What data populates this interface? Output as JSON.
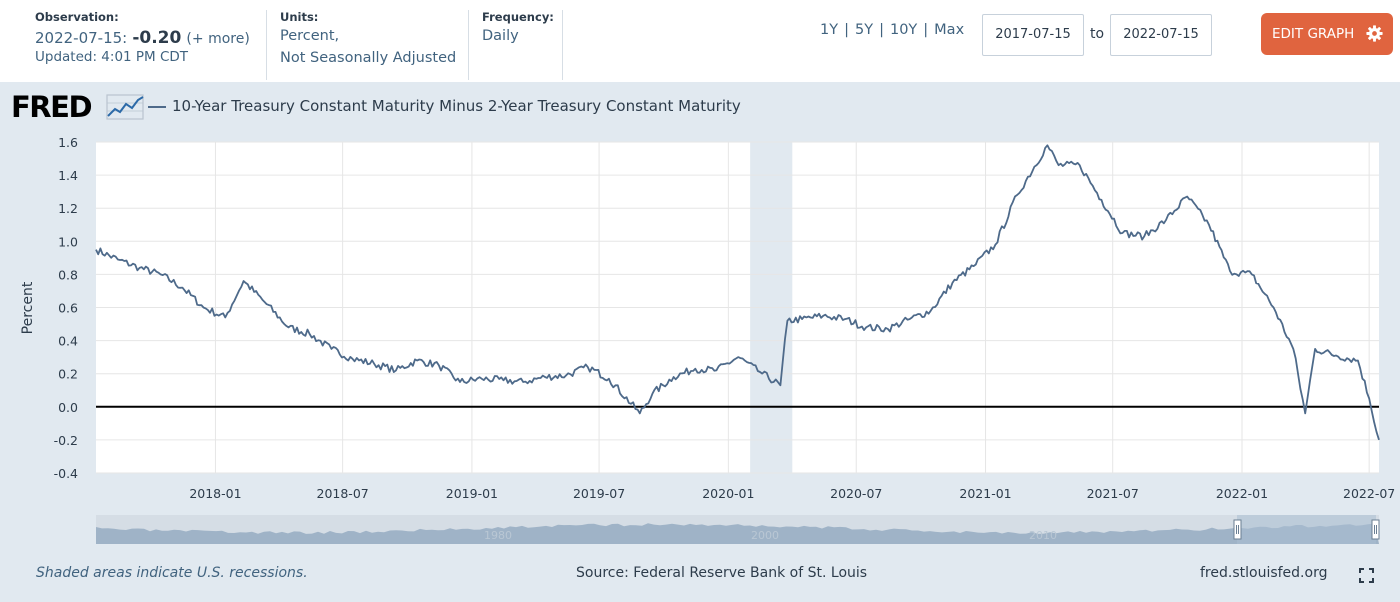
{
  "header": {
    "observation": {
      "label": "Observation:",
      "date": "2022-07-15:",
      "value": "-0.20",
      "more": "(+ more)",
      "updated": "Updated: 4:01 PM CDT"
    },
    "units": {
      "label": "Units:",
      "line1": "Percent,",
      "line2": "Not Seasonally Adjusted"
    },
    "frequency": {
      "label": "Frequency:",
      "value": "Daily"
    },
    "ranges": [
      "1Y",
      "5Y",
      "10Y",
      "Max"
    ],
    "range_separator": "|",
    "start_date": "2017-07-15",
    "to_label": "to",
    "end_date": "2022-07-15",
    "edit_button": "EDIT GRAPH"
  },
  "logo": {
    "text": "FRED",
    "icon": "fred-chart-icon"
  },
  "series_title": "10-Year Treasury Constant Maturity Minus 2-Year Treasury Constant Maturity",
  "chart_data": {
    "type": "line",
    "title": "10-Year Treasury Constant Maturity Minus 2-Year Treasury Constant Maturity",
    "ylabel": "Percent",
    "xlabel": "",
    "ylim": [
      -0.4,
      1.6
    ],
    "y_ticks": [
      "1.6",
      "1.4",
      "1.2",
      "1.0",
      "0.8",
      "0.6",
      "0.4",
      "0.2",
      "0.0",
      "-0.2",
      "-0.4"
    ],
    "xlim": [
      "2017-07-15",
      "2022-07-15"
    ],
    "x_ticks": [
      "2018-01",
      "2018-07",
      "2019-01",
      "2019-07",
      "2020-01",
      "2020-07",
      "2021-01",
      "2021-07",
      "2022-01",
      "2022-07"
    ],
    "grid": true,
    "recession_shading": {
      "start": "2020-02",
      "end": "2020-04"
    },
    "line_color": "#4e6a8a",
    "zero_line_color": "#000000",
    "recession_color": "#e1e9f0",
    "series": [
      {
        "x": [
          "2017-07-15",
          "2017-08-15",
          "2017-09-15",
          "2017-10-15",
          "2017-11-15",
          "2017-12-15",
          "2018-01-15",
          "2018-02-10",
          "2018-03-15",
          "2018-04-15",
          "2018-05-15",
          "2018-06-15",
          "2018-07-15",
          "2018-08-15",
          "2018-09-15",
          "2018-10-15",
          "2018-11-15",
          "2018-12-15",
          "2019-01-15",
          "2019-02-15",
          "2019-03-15",
          "2019-04-15",
          "2019-05-15",
          "2019-06-15",
          "2019-07-15",
          "2019-08-28",
          "2019-09-15",
          "2019-10-15",
          "2019-11-15",
          "2019-12-15",
          "2020-01-15",
          "2020-02-15",
          "2020-03-15",
          "2020-03-25",
          "2020-04-15",
          "2020-05-15",
          "2020-06-15",
          "2020-07-15",
          "2020-08-15",
          "2020-09-15",
          "2020-10-15",
          "2020-11-15",
          "2020-12-15",
          "2021-01-15",
          "2021-02-15",
          "2021-03-30",
          "2021-04-15",
          "2021-05-15",
          "2021-06-15",
          "2021-07-15",
          "2021-08-15",
          "2021-09-15",
          "2021-10-15",
          "2021-11-15",
          "2021-12-15",
          "2022-01-15",
          "2022-02-15",
          "2022-03-15",
          "2022-04-01",
          "2022-04-15",
          "2022-05-15",
          "2022-06-15",
          "2022-07-01",
          "2022-07-15"
        ],
        "values": [
          0.95,
          0.89,
          0.84,
          0.8,
          0.72,
          0.6,
          0.54,
          0.76,
          0.62,
          0.48,
          0.44,
          0.35,
          0.29,
          0.26,
          0.22,
          0.28,
          0.25,
          0.15,
          0.17,
          0.16,
          0.15,
          0.18,
          0.19,
          0.24,
          0.17,
          -0.04,
          0.08,
          0.18,
          0.23,
          0.22,
          0.3,
          0.21,
          0.13,
          0.52,
          0.53,
          0.55,
          0.53,
          0.48,
          0.47,
          0.53,
          0.58,
          0.75,
          0.85,
          0.98,
          1.28,
          1.58,
          1.46,
          1.46,
          1.25,
          1.05,
          1.03,
          1.13,
          1.27,
          1.1,
          0.82,
          0.8,
          0.6,
          0.35,
          -0.04,
          0.35,
          0.31,
          0.28,
          0.05,
          -0.2
        ]
      }
    ]
  },
  "navigator_labels": [
    "1980",
    "2000",
    "2010"
  ],
  "footer": {
    "recession_note": "Shaded areas indicate U.S. recessions.",
    "source": "Source: Federal Reserve Bank of St. Louis",
    "site": "fred.stlouisfed.org"
  }
}
